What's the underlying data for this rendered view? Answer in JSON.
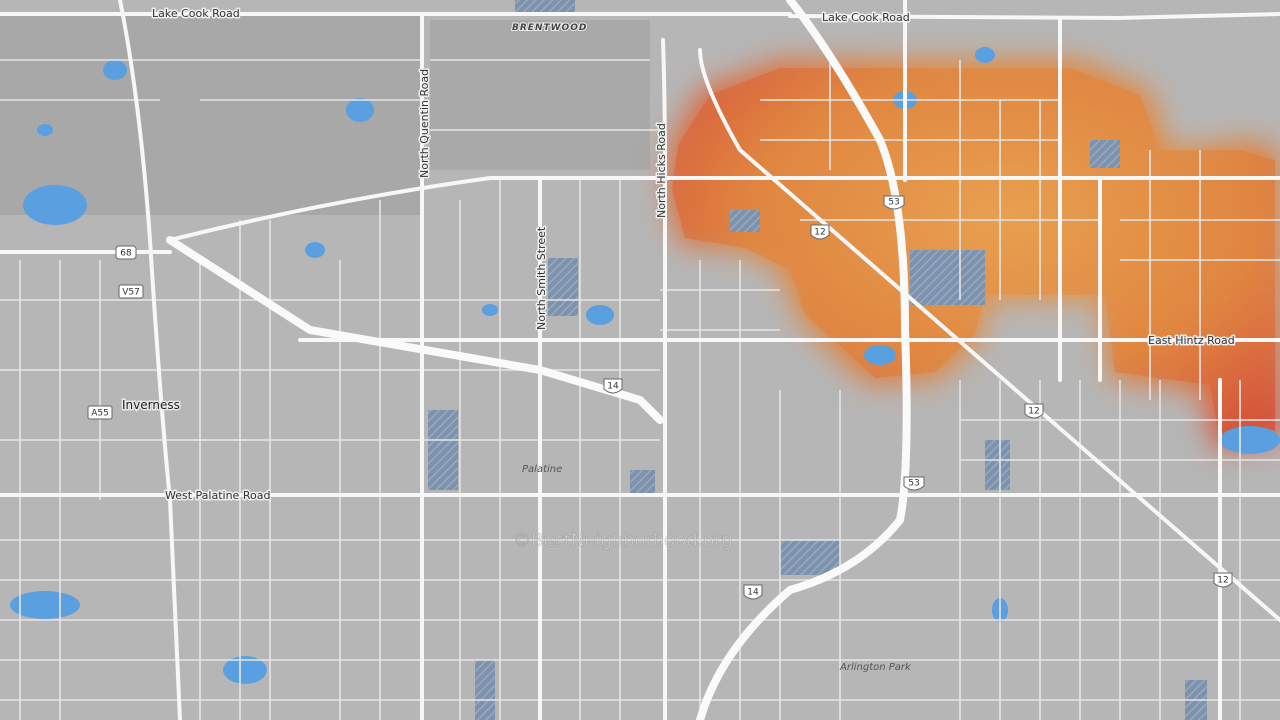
{
  "labels": {
    "lake_cook_west": "Lake Cook Road",
    "lake_cook_east": "Lake Cook Road",
    "brentwood": "BRENTWOOD",
    "quentin": "North Quentin Road",
    "hicks": "North Hicks Road",
    "smith": "North Smith Street",
    "inverness": "Inverness",
    "palatine_road": "West Palatine Road",
    "palatine": "Palatine",
    "hintz": "East Hintz Road",
    "arlington_park": "Arlington Park",
    "watermark": "©BestNeighborhood.org"
  },
  "shields": [
    "68",
    "V57",
    "A55",
    "14",
    "14",
    "12",
    "12",
    "12",
    "53",
    "53"
  ]
}
